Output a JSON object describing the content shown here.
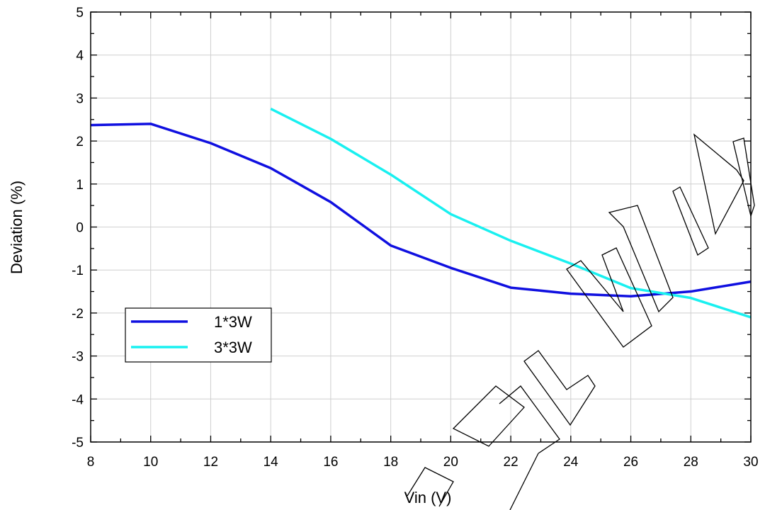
{
  "chart_data": {
    "type": "line",
    "title": "",
    "xlabel": "Vin (V)",
    "ylabel": "Deviation (%)",
    "xlim": [
      8,
      30
    ],
    "ylim": [
      -5,
      5
    ],
    "x_ticks": [
      8,
      10,
      12,
      14,
      16,
      18,
      20,
      22,
      24,
      26,
      28,
      30
    ],
    "y_ticks": [
      5,
      4,
      3,
      2,
      1,
      0,
      -1,
      -2,
      -3,
      -4,
      -5
    ],
    "grid": true,
    "legend_position": "lower-left",
    "series": [
      {
        "name": "1*3W",
        "color": "#1010e0",
        "x": [
          8,
          10,
          12,
          14,
          16,
          18,
          20,
          22,
          24,
          26,
          28,
          30
        ],
        "y": [
          2.37,
          2.4,
          1.95,
          1.37,
          0.58,
          -0.43,
          -0.95,
          -1.41,
          -1.55,
          -1.61,
          -1.5,
          -1.27
        ]
      },
      {
        "name": "3*3W",
        "color": "#19f0f0",
        "x": [
          14,
          16,
          18,
          20,
          22,
          24,
          26,
          28,
          30
        ],
        "y": [
          2.75,
          2.05,
          1.22,
          0.3,
          -0.32,
          -0.85,
          -1.42,
          -1.65,
          -2.1
        ]
      }
    ]
  }
}
